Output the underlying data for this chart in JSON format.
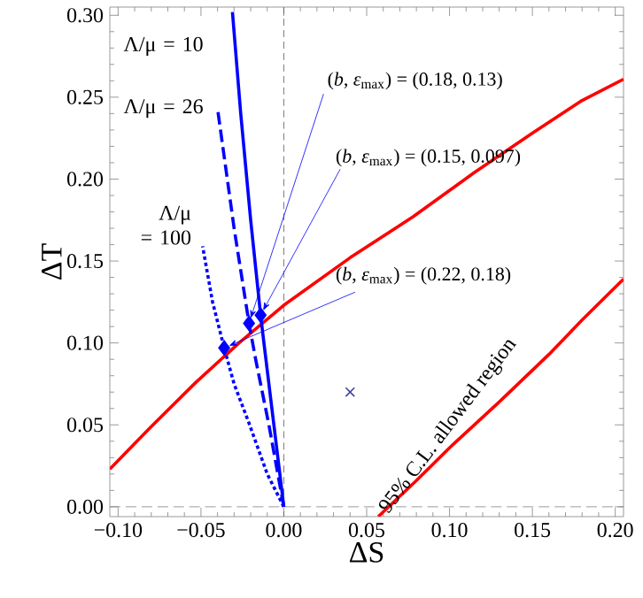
{
  "chart_data": {
    "type": "line",
    "xlabel": "ΔS",
    "ylabel": "ΔT",
    "xlim": [
      -0.105,
      0.205
    ],
    "ylim": [
      -0.006,
      0.305
    ],
    "xticks": [
      {
        "value": -0.1,
        "label": "−0.10"
      },
      {
        "value": -0.05,
        "label": "−0.05"
      },
      {
        "value": 0,
        "label": "0.00"
      },
      {
        "value": 0.05,
        "label": "0.05"
      },
      {
        "value": 0.1,
        "label": "0.10"
      },
      {
        "value": 0.15,
        "label": "0.15"
      },
      {
        "value": 0.2,
        "label": "0.20"
      }
    ],
    "yticks": [
      {
        "value": 0,
        "label": "0.00"
      },
      {
        "value": 0.05,
        "label": "0.05"
      },
      {
        "value": 0.1,
        "label": "0.10"
      },
      {
        "value": 0.15,
        "label": "0.15"
      },
      {
        "value": 0.2,
        "label": "0.20"
      },
      {
        "value": 0.25,
        "label": "0.25"
      },
      {
        "value": 0.3,
        "label": "0.30"
      }
    ],
    "ref_lines": [
      {
        "axis": "x",
        "value": 0,
        "color": "#555555",
        "line_style": "dashed"
      },
      {
        "axis": "y",
        "value": 0,
        "color": "#808080",
        "line_style": "dashed"
      }
    ],
    "series": [
      {
        "color": "#ff0000",
        "line_style": "solid",
        "x": [
          -0.105,
          -0.08,
          -0.053,
          -0.027,
          0,
          0.04,
          0.078,
          0.115,
          0.15,
          0.18,
          0.205
        ],
        "values": [
          0.023,
          0.049,
          0.076,
          0.1,
          0.123,
          0.152,
          0.177,
          0.204,
          0.228,
          0.248,
          0.261
        ]
      },
      {
        "color": "#ff0000",
        "line_style": "solid",
        "x": [
          0.057,
          0.08,
          0.1,
          0.13,
          0.16,
          0.18,
          0.205
        ],
        "values": [
          -0.006,
          0.016,
          0.036,
          0.064,
          0.093,
          0.114,
          0.139
        ]
      },
      {
        "name": "Λ/μ = 10",
        "color": "#0000ff",
        "line_style": "solid",
        "x": [
          0,
          -0.006,
          -0.012,
          -0.014,
          -0.02,
          -0.026,
          -0.031
        ],
        "values": [
          0,
          0.05,
          0.1,
          0.117,
          0.175,
          0.24,
          0.302
        ]
      },
      {
        "name": "Λ/μ = 26",
        "color": "#0000ff",
        "line_style": "dashed",
        "x": [
          0,
          -0.009,
          -0.017,
          -0.021,
          -0.03,
          -0.04
        ],
        "values": [
          0,
          0.05,
          0.09,
          0.112,
          0.17,
          0.243
        ]
      },
      {
        "name": "Λ/μ = 100",
        "color": "#0000ff",
        "line_style": "dotted",
        "x": [
          0,
          -0.01,
          -0.021,
          -0.03,
          -0.036,
          -0.043,
          -0.049
        ],
        "values": [
          0,
          0.02,
          0.051,
          0.075,
          0.097,
          0.125,
          0.159
        ]
      },
      {
        "type": "scatter",
        "marker": "diamond",
        "color": "#0000ff",
        "x": [
          -0.014,
          -0.021,
          -0.036
        ],
        "values": [
          0.117,
          0.112,
          0.097
        ]
      },
      {
        "type": "scatter",
        "marker": "cross",
        "color": "#4040a0",
        "x": [
          0.04
        ],
        "values": [
          0.07
        ]
      }
    ],
    "annotations": [
      {
        "text": "(*b*, *ε*$_{max}$) = (0.18, 0.13)",
        "x": -0.021,
        "y": 0.112
      },
      {
        "text": "(*b*, *ε*$_{max}$) = (0.15, 0.097)",
        "x": -0.014,
        "y": 0.117
      },
      {
        "text": "(*b*, *ε*$_{max}$) = (0.22, 0.18)",
        "x": -0.036,
        "y": 0.097
      },
      "95% C.L. allowed region"
    ]
  }
}
